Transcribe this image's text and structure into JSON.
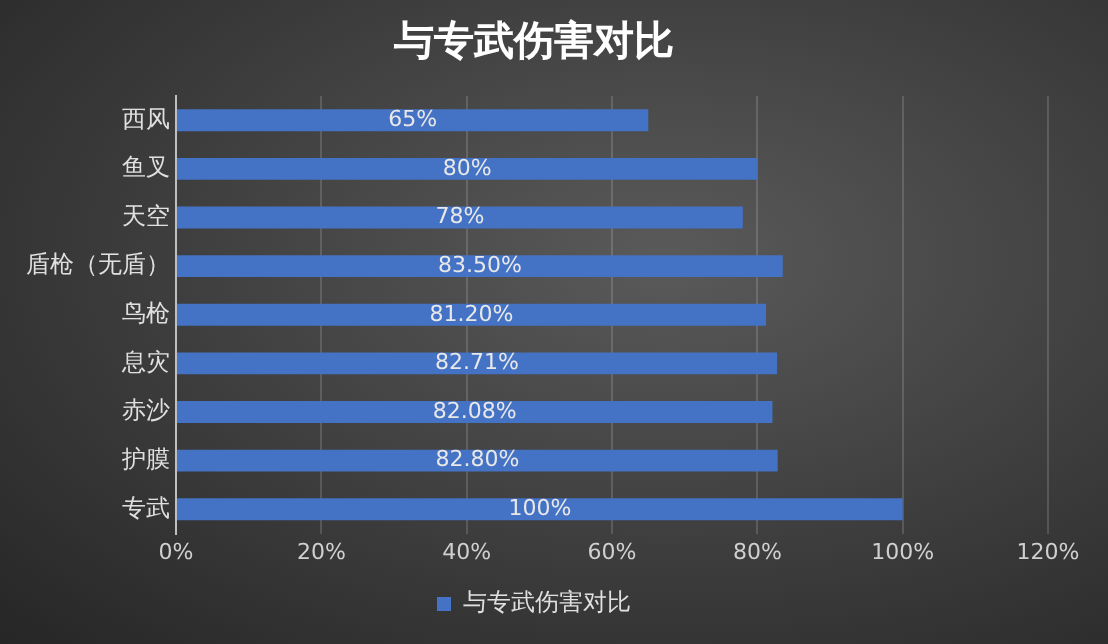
{
  "chart_data": {
    "type": "bar",
    "orientation": "horizontal",
    "title": "与专武伤害对比",
    "categories": [
      "西风",
      "鱼叉",
      "天空",
      "盾枪（无盾）",
      "鸟枪",
      "息灾",
      "赤沙",
      "护膜",
      "专武"
    ],
    "series": [
      {
        "name": "与专武伤害对比",
        "color": "#4472c4",
        "values": [
          65,
          80,
          78,
          83.5,
          81.2,
          82.71,
          82.08,
          82.8,
          100
        ],
        "value_labels": [
          "65%",
          "80%",
          "78%",
          "83.50%",
          "81.20%",
          "82.71%",
          "82.08%",
          "82.80%",
          "100%"
        ]
      }
    ],
    "xlim": [
      0,
      120
    ],
    "xticks": [
      {
        "value": 0,
        "label": "0%"
      },
      {
        "value": 20,
        "label": "20%"
      },
      {
        "value": 40,
        "label": "40%"
      },
      {
        "value": 60,
        "label": "60%"
      },
      {
        "value": 80,
        "label": "80%"
      },
      {
        "value": 100,
        "label": "100%"
      },
      {
        "value": 120,
        "label": "120%"
      }
    ],
    "grid": "x",
    "legend": "bottom"
  }
}
